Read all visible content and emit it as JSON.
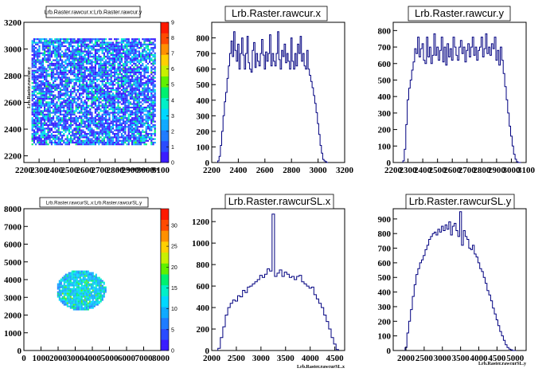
{
  "chart_data": [
    {
      "type": "heatmap",
      "title": "Lrb.Raster.rawcur.x:Lrb.Raster.rawcur.y",
      "xlabel": "Lrb.Raster.rawcur.x",
      "ylabel": "Lrb.Raster.rawcur.y",
      "xlim": [
        2200,
        3100
      ],
      "ylim": [
        2150,
        3200
      ],
      "x_ticks": [
        "2200",
        "2300",
        "2400",
        "2500",
        "2600",
        "2700",
        "2800",
        "2900",
        "3000",
        "3100"
      ],
      "y_ticks": [
        "2200",
        "2400",
        "2600",
        "2800",
        "3000",
        "3200"
      ],
      "colorbar_ticks": [
        "0",
        "1",
        "2",
        "3",
        "4",
        "5",
        "6",
        "7",
        "8",
        "9"
      ],
      "colorbar_max": 9,
      "region": {
        "x": [
          2250,
          3060
        ],
        "y": [
          2280,
          3080
        ]
      },
      "colors": {
        "low": "#1f3cff",
        "mid": "#00d8ff",
        "high": "#ff2a00"
      }
    },
    {
      "type": "bar",
      "title": "Lrb.Raster.rawcur.x",
      "xlim": [
        2200,
        3200
      ],
      "ylim": [
        0,
        900
      ],
      "x_ticks": [
        "2200",
        "2400",
        "2600",
        "2800",
        "3000",
        "3200"
      ],
      "y_ticks": [
        "0",
        "100",
        "200",
        "300",
        "400",
        "500",
        "600",
        "700",
        "800"
      ],
      "bins_x": [
        2250,
        2260,
        2270,
        2280,
        2290,
        2300,
        2310,
        2320,
        2330,
        2340,
        2350,
        2360,
        2370,
        2380,
        2390,
        2400,
        2410,
        2420,
        2430,
        2440,
        2450,
        2460,
        2470,
        2480,
        2490,
        2500,
        2510,
        2520,
        2530,
        2540,
        2550,
        2560,
        2570,
        2580,
        2590,
        2600,
        2610,
        2620,
        2630,
        2640,
        2650,
        2660,
        2670,
        2680,
        2690,
        2700,
        2710,
        2720,
        2730,
        2740,
        2750,
        2760,
        2770,
        2780,
        2790,
        2800,
        2810,
        2820,
        2830,
        2840,
        2850,
        2860,
        2870,
        2880,
        2890,
        2900,
        2910,
        2920,
        2930,
        2940,
        2950,
        2960,
        2970,
        2980,
        2990,
        3000,
        3010,
        3020,
        3030,
        3040,
        3050,
        3060,
        3070
      ],
      "values": [
        10,
        40,
        110,
        200,
        300,
        390,
        450,
        540,
        620,
        700,
        780,
        680,
        840,
        720,
        650,
        760,
        600,
        700,
        800,
        690,
        600,
        700,
        810,
        640,
        600,
        580,
        720,
        770,
        610,
        700,
        650,
        620,
        700,
        790,
        690,
        600,
        710,
        650,
        700,
        820,
        620,
        700,
        650,
        620,
        700,
        840,
        660,
        600,
        720,
        680,
        760,
        640,
        700,
        650,
        600,
        800,
        650,
        600,
        700,
        620,
        760,
        700,
        810,
        650,
        700,
        620,
        600,
        720,
        600,
        560,
        520,
        480,
        430,
        380,
        320,
        250,
        180,
        110,
        60,
        20,
        10,
        5,
        0
      ],
      "color": "#000080"
    },
    {
      "type": "bar",
      "title": "Lrb.Raster.rawcur.y",
      "xlim": [
        2200,
        3100
      ],
      "ylim": [
        0,
        850
      ],
      "x_ticks": [
        "2200",
        "2300",
        "2400",
        "2500",
        "2600",
        "2700",
        "2800",
        "2900",
        "3000",
        "3100"
      ],
      "y_ticks": [
        "0",
        "100",
        "200",
        "300",
        "400",
        "500",
        "600",
        "700",
        "800"
      ],
      "bins_x": [
        2270,
        2280,
        2290,
        2300,
        2310,
        2320,
        2330,
        2340,
        2350,
        2360,
        2370,
        2380,
        2390,
        2400,
        2410,
        2420,
        2430,
        2440,
        2450,
        2460,
        2470,
        2480,
        2490,
        2500,
        2510,
        2520,
        2530,
        2540,
        2550,
        2560,
        2570,
        2580,
        2590,
        2600,
        2610,
        2620,
        2630,
        2640,
        2650,
        2660,
        2670,
        2680,
        2690,
        2700,
        2710,
        2720,
        2730,
        2740,
        2750,
        2760,
        2770,
        2780,
        2790,
        2800,
        2810,
        2820,
        2830,
        2840,
        2850,
        2860,
        2870,
        2880,
        2890,
        2900,
        2910,
        2920,
        2930,
        2940,
        2950,
        2960,
        2970,
        2980,
        2990,
        3000,
        3010,
        3020,
        3030,
        3040,
        3050,
        3060
      ],
      "values": [
        10,
        80,
        230,
        380,
        450,
        500,
        560,
        610,
        690,
        660,
        760,
        640,
        690,
        720,
        620,
        600,
        760,
        640,
        700,
        600,
        650,
        780,
        650,
        700,
        620,
        680,
        760,
        610,
        700,
        590,
        720,
        640,
        690,
        620,
        760,
        700,
        650,
        620,
        700,
        740,
        660,
        700,
        610,
        680,
        720,
        640,
        700,
        760,
        650,
        700,
        620,
        680,
        700,
        760,
        640,
        690,
        780,
        660,
        700,
        650,
        720,
        690,
        760,
        620,
        680,
        590,
        700,
        620,
        540,
        460,
        380,
        300,
        220,
        160,
        100,
        50,
        20,
        5,
        0,
        0
      ],
      "color": "#000080"
    },
    {
      "type": "heatmap",
      "title": "Lrb.Raster.rawcurSL.x:Lrb.Raster.rawcurSL.y",
      "xlim": [
        0,
        8000
      ],
      "ylim": [
        0,
        8000
      ],
      "x_ticks": [
        "0",
        "1000",
        "2000",
        "3000",
        "4000",
        "5000",
        "6000",
        "7000",
        "8000"
      ],
      "y_ticks": [
        "0",
        "1000",
        "2000",
        "3000",
        "4000",
        "5000",
        "6000",
        "7000",
        "8000"
      ],
      "colorbar_ticks": [
        "0",
        "5",
        "10",
        "15",
        "20",
        "25",
        "30"
      ],
      "colorbar_max": 34,
      "ellipse": {
        "cx": 3300,
        "cy": 3450,
        "rx": 1450,
        "ry": 1150
      },
      "colors": {
        "low": "#1f3cff",
        "mid": "#00d8ff",
        "high": "#ff2a00"
      }
    },
    {
      "type": "bar",
      "title": "Lrb.Raster.rawcurSL.x",
      "xlabel": "Lrb.Raster.rawcurSL.x",
      "xlim": [
        2000,
        4700
      ],
      "ylim": [
        0,
        1320
      ],
      "x_ticks": [
        "2000",
        "2500",
        "3000",
        "3500",
        "4000",
        "4500"
      ],
      "y_ticks": [
        "0",
        "200",
        "400",
        "600",
        "800",
        "1000",
        "1200"
      ],
      "bins_x": [
        2150,
        2200,
        2250,
        2300,
        2350,
        2400,
        2450,
        2500,
        2550,
        2600,
        2650,
        2700,
        2750,
        2800,
        2850,
        2900,
        2950,
        3000,
        3050,
        3100,
        3150,
        3200,
        3250,
        3300,
        3350,
        3400,
        3450,
        3500,
        3550,
        3600,
        3650,
        3700,
        3750,
        3800,
        3850,
        3900,
        3950,
        4000,
        4050,
        4100,
        4150,
        4200,
        4250,
        4300,
        4350,
        4400,
        4450,
        4500,
        4550
      ],
      "values": [
        20,
        120,
        220,
        330,
        400,
        440,
        470,
        460,
        510,
        500,
        560,
        540,
        590,
        600,
        620,
        640,
        660,
        700,
        680,
        710,
        760,
        740,
        1270,
        690,
        720,
        750,
        690,
        730,
        710,
        680,
        690,
        660,
        690,
        700,
        640,
        620,
        600,
        580,
        590,
        520,
        480,
        440,
        400,
        330,
        270,
        200,
        120,
        60,
        10
      ],
      "color": "#000080"
    },
    {
      "type": "bar",
      "title": "Lrb.Raster.rawcurSL.y",
      "xlabel": "Lrb.Raster.rawcurSL.y",
      "xlim": [
        1650,
        5300
      ],
      "ylim": [
        0,
        970
      ],
      "x_ticks": [
        "2000",
        "2500",
        "3000",
        "3500",
        "4000",
        "4500",
        "5000"
      ],
      "y_ticks": [
        "0",
        "100",
        "200",
        "300",
        "400",
        "500",
        "600",
        "700",
        "800",
        "900"
      ],
      "bins_x": [
        2000,
        2050,
        2100,
        2150,
        2200,
        2250,
        2300,
        2350,
        2400,
        2450,
        2500,
        2550,
        2600,
        2650,
        2700,
        2750,
        2800,
        2850,
        2900,
        2950,
        3000,
        3050,
        3100,
        3150,
        3200,
        3250,
        3300,
        3350,
        3400,
        3450,
        3500,
        3550,
        3600,
        3650,
        3700,
        3750,
        3800,
        3850,
        3900,
        3950,
        4000,
        4050,
        4100,
        4150,
        4200,
        4250,
        4300,
        4350,
        4400,
        4450,
        4500,
        4550,
        4600,
        4650,
        4700,
        4750,
        4800,
        4850,
        4900,
        4950,
        5000
      ],
      "values": [
        20,
        120,
        200,
        280,
        370,
        450,
        520,
        560,
        600,
        620,
        650,
        690,
        720,
        760,
        780,
        800,
        810,
        790,
        830,
        810,
        850,
        820,
        860,
        830,
        880,
        790,
        850,
        870,
        820,
        780,
        950,
        720,
        820,
        780,
        760,
        700,
        690,
        720,
        660,
        640,
        600,
        560,
        540,
        500,
        460,
        410,
        380,
        340,
        290,
        250,
        210,
        170,
        130,
        100,
        70,
        40,
        20,
        10,
        5,
        0,
        0
      ],
      "color": "#000080"
    }
  ]
}
